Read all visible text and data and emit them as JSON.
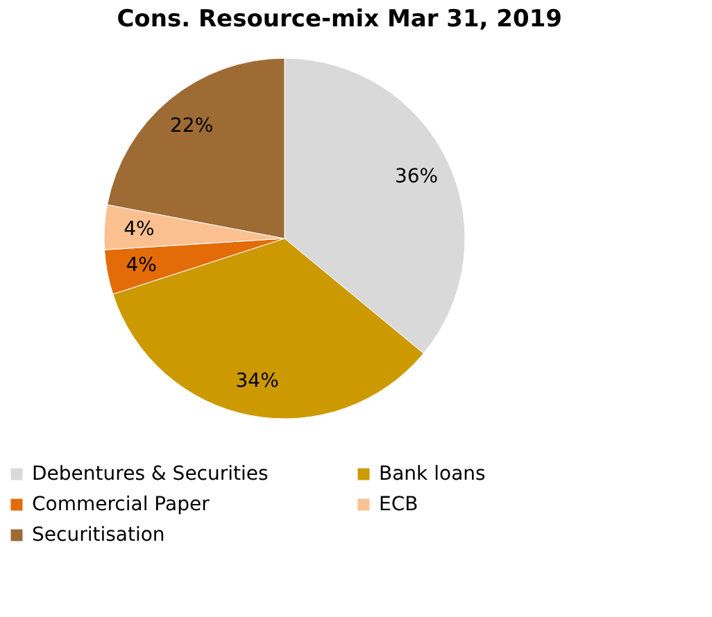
{
  "chart_data": {
    "type": "pie",
    "title": "Cons. Resource-mix Mar 31, 2019",
    "categories": [
      "Debentures & Securities",
      "Bank loans",
      "Commercial Paper",
      "ECB",
      "Securitisation"
    ],
    "values": [
      36,
      34,
      4,
      4,
      22
    ],
    "colors": [
      "#d9d9d9",
      "#cc9900",
      "#e36c09",
      "#fac090",
      "#9e6b35"
    ],
    "value_labels": [
      "36%",
      "34%",
      "4%",
      "4%",
      "22%"
    ],
    "legend": "bottom"
  }
}
